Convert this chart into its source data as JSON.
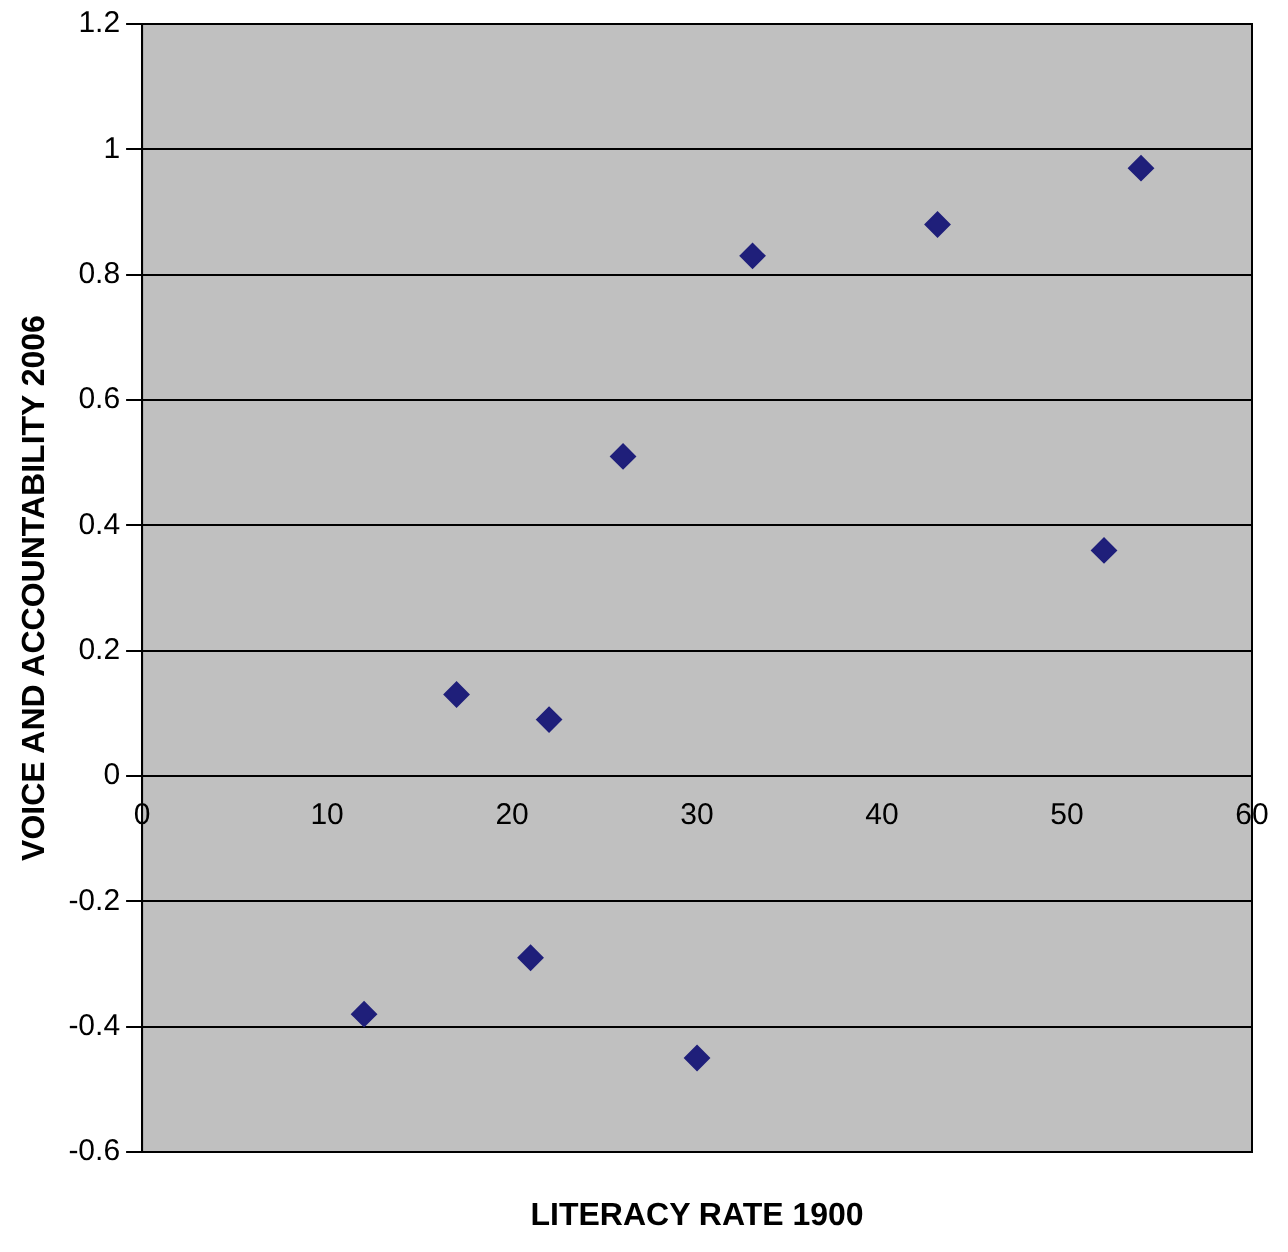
{
  "chart_data": {
    "type": "scatter",
    "xlabel": "LITERACY RATE 1900",
    "ylabel": "VOICE AND ACCOUNTABILITY 2006",
    "x": [
      12,
      17,
      21,
      22,
      26,
      30,
      33,
      43,
      52,
      54
    ],
    "values": [
      -0.38,
      0.13,
      -0.29,
      0.09,
      0.51,
      -0.45,
      0.83,
      0.88,
      0.36,
      0.97
    ],
    "color": "#1f1f7a",
    "marker": "diamond",
    "xlim": [
      0,
      60
    ],
    "xticks": [
      0,
      10,
      20,
      30,
      40,
      50,
      60
    ],
    "ylim": [
      -0.6,
      1.2
    ],
    "yticks": [
      -0.6,
      -0.4,
      -0.2,
      0,
      0.2,
      0.4,
      0.6,
      0.8,
      1,
      1.2
    ],
    "grid": "y",
    "legend": false
  }
}
